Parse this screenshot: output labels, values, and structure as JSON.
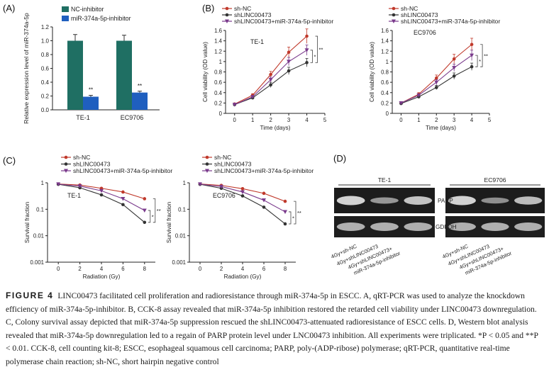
{
  "panels": {
    "a": {
      "letter": "(A)"
    },
    "b": {
      "letter": "(B)"
    },
    "c": {
      "letter": "(C)"
    },
    "d": {
      "letter": "(D)"
    }
  },
  "colors": {
    "nc": "#1f6f63",
    "inh": "#1f5fbf",
    "shnc": "#c0392b",
    "shlinc": "#333333",
    "combo": "#7a3a8c"
  },
  "legend_a": [
    "NC-inhibitor",
    "miR-374a-5p-inhibitor"
  ],
  "legend_bc": [
    "sh-NC",
    "shLINC00473",
    "shLINC00473+miR-374a-5p-inhibitor"
  ],
  "chart_data": [
    {
      "id": "A",
      "type": "bar",
      "ylabel": "Relative expression level of miR-374a-5p",
      "ylim": [
        0,
        1.2
      ],
      "yticks": [
        "0.0",
        "0.2",
        "0.4",
        "0.6",
        "0.8",
        "1.0",
        "1.2"
      ],
      "categories": [
        "TE-1",
        "EC9706"
      ],
      "series": [
        {
          "name": "NC-inhibitor",
          "values": [
            1.0,
            1.0
          ],
          "errors": [
            0.09,
            0.08
          ]
        },
        {
          "name": "miR-374a-5p-inhibitor",
          "values": [
            0.19,
            0.25
          ],
          "errors": [
            0.02,
            0.02
          ]
        }
      ],
      "annotations": [
        "**",
        "**"
      ]
    },
    {
      "id": "B1",
      "type": "line",
      "title": "TE-1",
      "xlabel": "Time (days)",
      "ylabel": "Cell viability (OD value)",
      "xlim": [
        -0.5,
        5
      ],
      "ylim": [
        0,
        1.6
      ],
      "xticks": [
        "0",
        "1",
        "2",
        "3",
        "4",
        "5"
      ],
      "yticks": [
        "0",
        "0.2",
        "0.4",
        "0.6",
        "0.8",
        "1",
        "1.2",
        "1.4",
        "1.6"
      ],
      "x": [
        0,
        1,
        2,
        3,
        4
      ],
      "series": [
        {
          "name": "sh-NC",
          "values": [
            0.18,
            0.35,
            0.75,
            1.18,
            1.49
          ],
          "errors": [
            0.01,
            0.03,
            0.06,
            0.1,
            0.14
          ]
        },
        {
          "name": "shLINC00473",
          "values": [
            0.17,
            0.3,
            0.55,
            0.82,
            0.98
          ],
          "errors": [
            0.01,
            0.02,
            0.05,
            0.07,
            0.08
          ]
        },
        {
          "name": "shLINC00473+miR-374a-5p-inhibitor",
          "values": [
            0.17,
            0.32,
            0.65,
            1.0,
            1.22
          ],
          "errors": [
            0.01,
            0.02,
            0.05,
            0.08,
            0.1
          ]
        }
      ],
      "annotations": [
        "*",
        "**"
      ]
    },
    {
      "id": "B2",
      "type": "line",
      "title": "EC9706",
      "xlabel": "Time (days)",
      "ylabel": "Cell viability (OD value)",
      "xlim": [
        -0.5,
        5
      ],
      "ylim": [
        0,
        1.6
      ],
      "xticks": [
        "0",
        "1",
        "2",
        "3",
        "4",
        "5"
      ],
      "yticks": [
        "0",
        "0.2",
        "0.4",
        "0.6",
        "0.8",
        "1",
        "1.2",
        "1.4",
        "1.6"
      ],
      "x": [
        0,
        1,
        2,
        3,
        4
      ],
      "series": [
        {
          "name": "sh-NC",
          "values": [
            0.2,
            0.37,
            0.68,
            1.05,
            1.33
          ],
          "errors": [
            0.01,
            0.03,
            0.06,
            0.09,
            0.12
          ]
        },
        {
          "name": "shLINC00473",
          "values": [
            0.19,
            0.32,
            0.5,
            0.72,
            0.9
          ],
          "errors": [
            0.01,
            0.02,
            0.04,
            0.06,
            0.07
          ]
        },
        {
          "name": "shLINC00473+miR-374a-5p-inhibitor",
          "values": [
            0.2,
            0.35,
            0.6,
            0.88,
            1.12
          ],
          "errors": [
            0.01,
            0.02,
            0.05,
            0.07,
            0.1
          ]
        }
      ],
      "annotations": [
        "*",
        "**"
      ]
    },
    {
      "id": "C1",
      "type": "line",
      "title": "TE-1",
      "xlabel": "Radiation (Gy)",
      "ylabel": "Survival fraction",
      "yscale": "log",
      "xlim": [
        -1,
        9
      ],
      "ylim": [
        0.001,
        1
      ],
      "xticks": [
        "0",
        "2",
        "4",
        "6",
        "8"
      ],
      "yticks": [
        "0.001",
        "0.01",
        "0.1",
        "1"
      ],
      "x": [
        0,
        2,
        4,
        6,
        8
      ],
      "series": [
        {
          "name": "sh-NC",
          "values": [
            0.9,
            0.82,
            0.62,
            0.45,
            0.25
          ]
        },
        {
          "name": "shLINC00473",
          "values": [
            0.88,
            0.65,
            0.35,
            0.15,
            0.032
          ]
        },
        {
          "name": "shLINC00473+miR-374a-5p-inhibitor",
          "values": [
            0.89,
            0.75,
            0.5,
            0.25,
            0.09
          ]
        }
      ],
      "annotations": [
        "*",
        "**"
      ]
    },
    {
      "id": "C2",
      "type": "line",
      "title": "EC9706",
      "xlabel": "Radiation (Gy)",
      "ylabel": "Survival fraction",
      "yscale": "log",
      "xlim": [
        -1,
        9
      ],
      "ylim": [
        0.001,
        1
      ],
      "xticks": [
        "0",
        "2",
        "4",
        "6",
        "8"
      ],
      "yticks": [
        "0.001",
        "0.01",
        "0.1",
        "1"
      ],
      "x": [
        0,
        2,
        4,
        6,
        8
      ],
      "series": [
        {
          "name": "sh-NC",
          "values": [
            0.9,
            0.8,
            0.6,
            0.4,
            0.2
          ]
        },
        {
          "name": "shLINC00473",
          "values": [
            0.88,
            0.62,
            0.32,
            0.12,
            0.028
          ]
        },
        {
          "name": "shLINC00473+miR-374a-5p-inhibitor",
          "values": [
            0.89,
            0.72,
            0.45,
            0.22,
            0.08
          ]
        }
      ],
      "annotations": [
        "*",
        "**"
      ]
    }
  ],
  "blot": {
    "cell_lines": [
      "TE-1",
      "EC9706"
    ],
    "proteins": [
      "PARP",
      "GDPDH"
    ],
    "lanes": [
      "4Gy+sh-NC",
      "4Gy+shLINC00473",
      "4Gy+shLINC00473+",
      "miR-374a-5p-inhibitor"
    ],
    "parp_intensity": [
      [
        1.0,
        0.6,
        0.9
      ],
      [
        1.0,
        0.55,
        0.85
      ]
    ]
  },
  "caption": {
    "label": "FIGURE 4",
    "text": "LINC00473 facilitated cell proliferation and radioresistance through miR-374a-5p in ESCC. A, qRT-PCR was used to analyze the knockdown efficiency of miR-374a-5p-inhibitor. B, CCK-8 assay revealed that miR-374a-5p inhibition restored the retarded cell viability under LINC00473 downregulation. C, Colony survival assay depicted that miR-374a-5p suppression rescued the shLINC00473-attenuated radioresistance of ESCC cells. D, Western blot analysis revealed that miR-374a-5p downregulation led to a regain of PARP protein level under LNC00473 inhibition. All experiments were triplicated. *P < 0.05 and **P < 0.01. CCK-8, cell counting kit-8; ESCC, esophageal squamous cell carcinoma; PARP, poly-(ADP-ribose) polymerase; qRT-PCR, quantitative real-time polymerase chain reaction; sh-NC, short hairpin negative control"
  }
}
